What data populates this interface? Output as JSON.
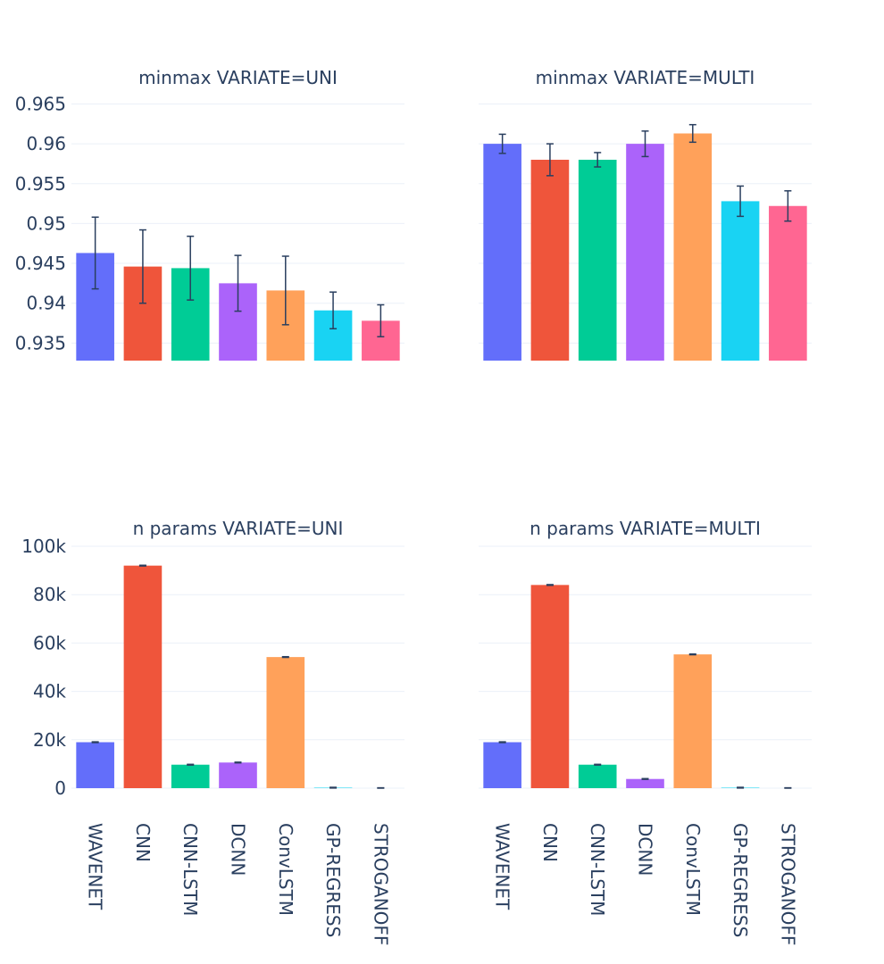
{
  "chart_data": [
    {
      "type": "bar",
      "title": "minmax VARIATE=UNI",
      "categories": [
        "WAVENET",
        "CNN",
        "CNN-LSTM",
        "DCNN",
        "ConvLSTM",
        "GP-REGRESS",
        "STROGANOFF"
      ],
      "values": [
        0.9463,
        0.9446,
        0.9444,
        0.9425,
        0.9416,
        0.9391,
        0.9378
      ],
      "error": [
        0.0045,
        0.0046,
        0.004,
        0.0035,
        0.0043,
        0.0023,
        0.002
      ],
      "ylim": [
        0.9328,
        0.9655
      ],
      "yticks": [
        0.935,
        0.94,
        0.945,
        0.95,
        0.955,
        0.96,
        0.965
      ],
      "yticklabels": [
        "0.935",
        "0.94",
        "0.945",
        "0.95",
        "0.955",
        "0.96",
        "0.965"
      ],
      "grid": true
    },
    {
      "type": "bar",
      "title": "minmax VARIATE=MULTI",
      "categories": [
        "WAVENET",
        "CNN",
        "CNN-LSTM",
        "DCNN",
        "ConvLSTM",
        "GP-REGRESS",
        "STROGANOFF"
      ],
      "values": [
        0.96,
        0.958,
        0.958,
        0.96,
        0.9613,
        0.9528,
        0.9522
      ],
      "error": [
        0.0012,
        0.002,
        0.0009,
        0.0016,
        0.0011,
        0.0019,
        0.0019
      ],
      "ylim": [
        0.9328,
        0.9655
      ],
      "yticks": [
        0.935,
        0.94,
        0.945,
        0.95,
        0.955,
        0.96,
        0.965
      ],
      "yticklabels": [],
      "grid": true
    },
    {
      "type": "bar",
      "title": "n params VARIATE=UNI",
      "categories": [
        "WAVENET",
        "CNN",
        "CNN-LSTM",
        "DCNN",
        "ConvLSTM",
        "GP-REGRESS",
        "STROGANOFF"
      ],
      "values": [
        19000,
        92000,
        9700,
        10600,
        54200,
        200,
        0
      ],
      "error": [
        150,
        150,
        150,
        150,
        150,
        150,
        150
      ],
      "ylim": [
        0,
        100000
      ],
      "yticks": [
        0,
        20000,
        40000,
        60000,
        80000,
        100000
      ],
      "yticklabels": [
        "0",
        "20k",
        "40k",
        "60k",
        "80k",
        "100k"
      ],
      "grid": true
    },
    {
      "type": "bar",
      "title": "n params VARIATE=MULTI",
      "categories": [
        "WAVENET",
        "CNN",
        "CNN-LSTM",
        "DCNN",
        "ConvLSTM",
        "GP-REGRESS",
        "STROGANOFF"
      ],
      "values": [
        19000,
        84000,
        9700,
        3800,
        55300,
        200,
        0
      ],
      "error": [
        150,
        150,
        150,
        150,
        150,
        150,
        150
      ],
      "ylim": [
        0,
        100000
      ],
      "yticks": [
        0,
        20000,
        40000,
        60000,
        80000,
        100000
      ],
      "yticklabels": [],
      "grid": true
    }
  ],
  "colors": [
    "#636efa",
    "#ef553b",
    "#00cc96",
    "#ab63fa",
    "#ffa15a",
    "#19d3f3",
    "#ff6692"
  ]
}
